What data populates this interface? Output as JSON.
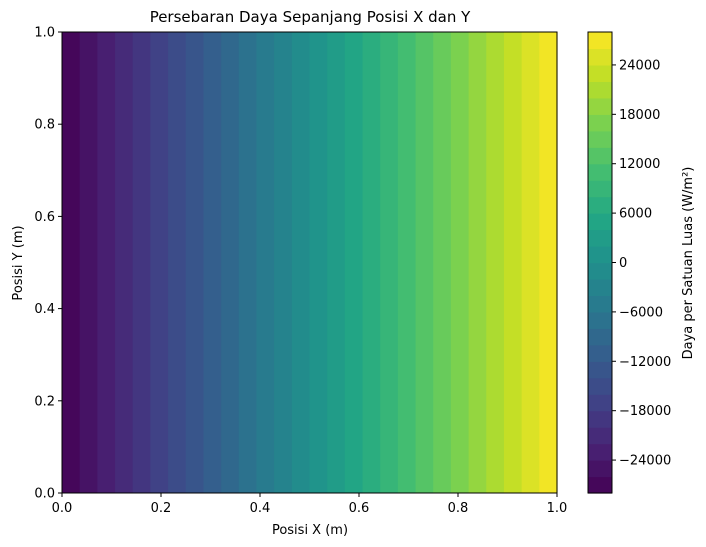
{
  "chart_data": {
    "type": "heatmap",
    "title": "Persebaran Daya Sepanjang Posisi X dan Y",
    "xlabel": "Posisi X (m)",
    "ylabel": "Posisi Y (m)",
    "xlim": [
      0.0,
      1.0
    ],
    "ylim": [
      0.0,
      1.0
    ],
    "x_ticks": [
      "0.0",
      "0.2",
      "0.4",
      "0.6",
      "0.8",
      "1.0"
    ],
    "y_ticks": [
      "0.0",
      "0.2",
      "0.4",
      "0.6",
      "0.8",
      "1.0"
    ],
    "x_tick_values": [
      0.0,
      0.2,
      0.4,
      0.6,
      0.8,
      1.0
    ],
    "y_tick_values": [
      0.0,
      0.2,
      0.4,
      0.6,
      0.8,
      1.0
    ],
    "colormap": "viridis",
    "value_range": [
      -28000,
      28000
    ],
    "level_step": 2000,
    "variation_axis": "x",
    "colorbar": {
      "label": "Daya per Satuan Luas (W/m²)",
      "ticks": [
        "−24000",
        "−18000",
        "−12000",
        "−6000",
        "0",
        "6000",
        "12000",
        "18000",
        "24000"
      ],
      "tick_values": [
        -24000,
        -18000,
        -12000,
        -6000,
        0,
        6000,
        12000,
        18000,
        24000
      ]
    },
    "grid": false
  }
}
